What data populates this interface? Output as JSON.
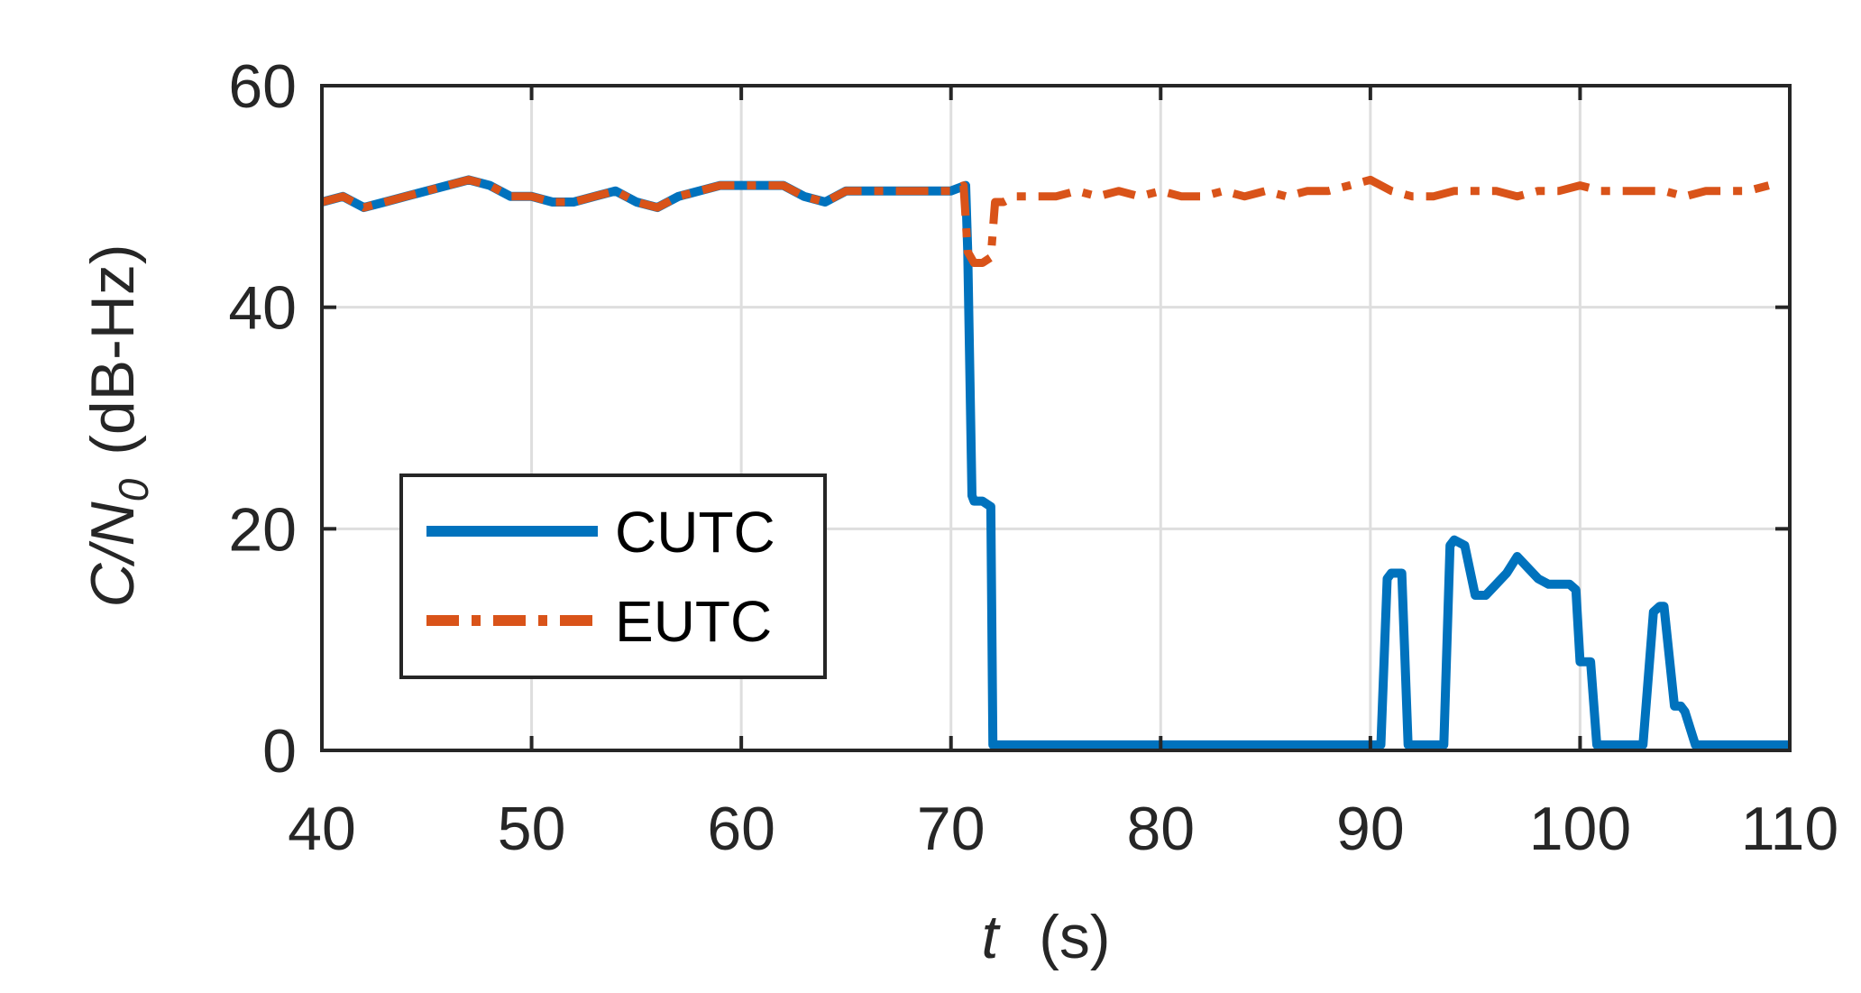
{
  "chart_data": {
    "type": "line",
    "title": "",
    "xlabel": {
      "var": "t",
      "unit": "(s)"
    },
    "ylabel": {
      "main": "C/N",
      "sub": "0",
      "unit": "(dB-Hz)"
    },
    "xlim": [
      40,
      110
    ],
    "ylim": [
      0,
      60
    ],
    "xticks": [
      40,
      50,
      60,
      70,
      80,
      90,
      100,
      110
    ],
    "yticks": [
      0,
      20,
      40,
      60
    ],
    "grid": true,
    "legend_position": "lower-left",
    "series": [
      {
        "name": "CUTC",
        "color": "#0072BD",
        "style": "solid",
        "x": [
          40,
          41,
          42,
          43,
          44,
          45,
          46,
          47,
          48,
          49,
          50,
          51,
          52,
          53,
          54,
          55,
          56,
          57,
          58,
          59,
          60,
          61,
          62,
          63,
          64,
          65,
          66,
          67,
          68,
          69,
          70,
          70.7,
          70.8,
          71,
          71.1,
          71.5,
          71.9,
          72.0,
          72.2,
          80,
          90,
          90.5,
          90.8,
          91,
          91.5,
          91.8,
          92,
          93.5,
          93.8,
          94,
          94.5,
          95,
          95.5,
          96,
          96.5,
          97,
          97.5,
          98,
          98.5,
          99,
          99.5,
          99.8,
          100,
          100.5,
          100.8,
          101,
          103,
          103.5,
          103.8,
          104,
          104.5,
          104.8,
          105,
          105.5,
          105.8,
          106,
          110
        ],
        "values": [
          49.5,
          50,
          49,
          49.5,
          50,
          50.5,
          51,
          51.5,
          51,
          50,
          50,
          49.5,
          49.5,
          50,
          50.5,
          49.5,
          49,
          50,
          50.5,
          51,
          51,
          51,
          51,
          50,
          49.5,
          50.5,
          50.5,
          50.5,
          50.5,
          50.5,
          50.5,
          51,
          45,
          23,
          22.5,
          22.5,
          22,
          0.5,
          0.5,
          0.5,
          0.5,
          0.5,
          15.5,
          16,
          16,
          0.5,
          0.5,
          0.5,
          18.5,
          19,
          18.5,
          14,
          14,
          15,
          16,
          17.5,
          16.5,
          15.5,
          15,
          15,
          15,
          14.5,
          8,
          8,
          0.5,
          0.5,
          0.5,
          12.5,
          13,
          13,
          4,
          4,
          3.5,
          0.5,
          0.5,
          0.5,
          0.5
        ]
      },
      {
        "name": "EUTC",
        "color": "#D95319",
        "style": "dashdot",
        "x": [
          40,
          41,
          42,
          43,
          44,
          45,
          46,
          47,
          48,
          49,
          50,
          51,
          52,
          53,
          54,
          55,
          56,
          57,
          58,
          59,
          60,
          61,
          62,
          63,
          64,
          65,
          66,
          67,
          68,
          69,
          70,
          70.6,
          70.8,
          71.1,
          71.5,
          71.9,
          72.1,
          72.5,
          73,
          74,
          75,
          76,
          77,
          78,
          79,
          80,
          81,
          82,
          83,
          84,
          85,
          86,
          87,
          88,
          89,
          90,
          91,
          92,
          93,
          94,
          95,
          96,
          97,
          98,
          99,
          100,
          101,
          102,
          103,
          104,
          105,
          106,
          107,
          108,
          109
        ],
        "values": [
          49.5,
          50,
          49,
          49.5,
          50,
          50.5,
          51,
          51.5,
          51,
          50,
          50,
          49.5,
          49.5,
          50,
          50.5,
          49.5,
          49,
          50,
          50.5,
          51,
          51,
          51,
          51,
          50,
          49.5,
          50.5,
          50.5,
          50.5,
          50.5,
          50.5,
          50.5,
          51,
          45,
          44,
          44,
          44.5,
          49.5,
          49.5,
          50,
          50,
          50,
          50.5,
          50,
          50.5,
          50,
          50.5,
          50,
          50,
          50.5,
          50,
          50.5,
          50,
          50.5,
          50.5,
          51,
          51.5,
          50.5,
          50,
          50,
          50.5,
          50.5,
          50.5,
          50,
          50.5,
          50.5,
          51,
          50.5,
          50.5,
          50.5,
          50.5,
          50,
          50.5,
          50.5,
          50.5,
          51
        ]
      }
    ]
  }
}
